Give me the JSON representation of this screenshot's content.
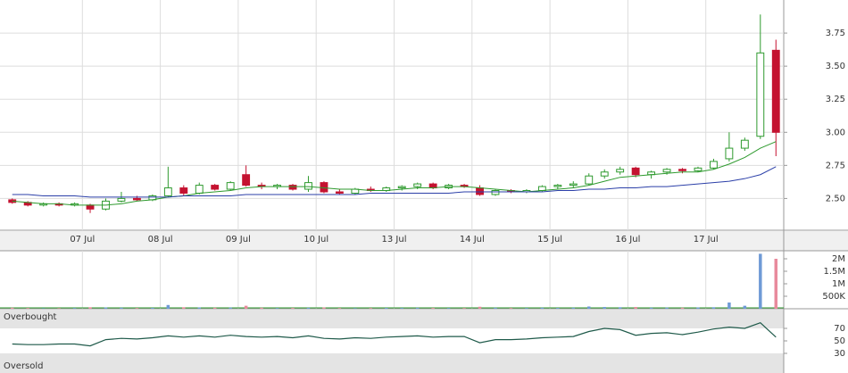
{
  "chart_data": [
    {
      "type": "candlestick",
      "xlim": [
        0,
        50
      ],
      "ylim": [
        2.26,
        4.0
      ],
      "up_color": "#2e9a2e",
      "down_color": "#c41230",
      "yticks": [
        {
          "value": 2.5,
          "label": "2.50"
        },
        {
          "value": 2.75,
          "label": "2.75"
        },
        {
          "value": 3.0,
          "label": "3.00"
        },
        {
          "value": 3.25,
          "label": "3.25"
        },
        {
          "value": 3.5,
          "label": "3.50"
        },
        {
          "value": 3.75,
          "label": "3.75"
        }
      ],
      "xticks": [
        {
          "value": 5,
          "label": "07 Jul"
        },
        {
          "value": 10,
          "label": "08 Jul"
        },
        {
          "value": 15,
          "label": "09 Jul"
        },
        {
          "value": 20,
          "label": "10 Jul"
        },
        {
          "value": 25,
          "label": "13 Jul"
        },
        {
          "value": 30,
          "label": "14 Jul"
        },
        {
          "value": 35,
          "label": "15 Jul"
        },
        {
          "value": 40,
          "label": "16 Jul"
        },
        {
          "value": 45,
          "label": "17 Jul"
        }
      ],
      "ohlc": [
        [
          2.49,
          2.5,
          2.46,
          2.47
        ],
        [
          2.47,
          2.48,
          2.44,
          2.45
        ],
        [
          2.45,
          2.47,
          2.44,
          2.46
        ],
        [
          2.46,
          2.47,
          2.44,
          2.45
        ],
        [
          2.45,
          2.47,
          2.44,
          2.46
        ],
        [
          2.45,
          2.46,
          2.39,
          2.42
        ],
        [
          2.42,
          2.5,
          2.41,
          2.48
        ],
        [
          2.48,
          2.55,
          2.47,
          2.5
        ],
        [
          2.5,
          2.52,
          2.48,
          2.49
        ],
        [
          2.49,
          2.53,
          2.48,
          2.52
        ],
        [
          2.52,
          2.74,
          2.51,
          2.58
        ],
        [
          2.58,
          2.6,
          2.52,
          2.54
        ],
        [
          2.54,
          2.62,
          2.53,
          2.6
        ],
        [
          2.6,
          2.61,
          2.56,
          2.57
        ],
        [
          2.57,
          2.63,
          2.56,
          2.62
        ],
        [
          2.68,
          2.75,
          2.59,
          2.6
        ],
        [
          2.6,
          2.62,
          2.57,
          2.59
        ],
        [
          2.59,
          2.61,
          2.57,
          2.6
        ],
        [
          2.6,
          2.61,
          2.56,
          2.57
        ],
        [
          2.57,
          2.67,
          2.55,
          2.62
        ],
        [
          2.62,
          2.63,
          2.54,
          2.55
        ],
        [
          2.55,
          2.57,
          2.53,
          2.54
        ],
        [
          2.54,
          2.58,
          2.53,
          2.57
        ],
        [
          2.57,
          2.59,
          2.55,
          2.56
        ],
        [
          2.56,
          2.59,
          2.55,
          2.58
        ],
        [
          2.58,
          2.6,
          2.56,
          2.59
        ],
        [
          2.59,
          2.62,
          2.57,
          2.61
        ],
        [
          2.61,
          2.62,
          2.57,
          2.58
        ],
        [
          2.58,
          2.61,
          2.57,
          2.6
        ],
        [
          2.6,
          2.61,
          2.58,
          2.59
        ],
        [
          2.58,
          2.6,
          2.52,
          2.53
        ],
        [
          2.53,
          2.57,
          2.52,
          2.56
        ],
        [
          2.56,
          2.57,
          2.54,
          2.55
        ],
        [
          2.55,
          2.57,
          2.54,
          2.56
        ],
        [
          2.56,
          2.6,
          2.55,
          2.59
        ],
        [
          2.59,
          2.61,
          2.57,
          2.6
        ],
        [
          2.6,
          2.63,
          2.58,
          2.61
        ],
        [
          2.61,
          2.69,
          2.6,
          2.67
        ],
        [
          2.67,
          2.72,
          2.65,
          2.7
        ],
        [
          2.7,
          2.74,
          2.68,
          2.72
        ],
        [
          2.73,
          2.74,
          2.66,
          2.68
        ],
        [
          2.68,
          2.71,
          2.65,
          2.7
        ],
        [
          2.7,
          2.73,
          2.68,
          2.72
        ],
        [
          2.72,
          2.73,
          2.69,
          2.71
        ],
        [
          2.71,
          2.74,
          2.7,
          2.73
        ],
        [
          2.73,
          2.8,
          2.72,
          2.78
        ],
        [
          2.8,
          3.0,
          2.78,
          2.88
        ],
        [
          2.88,
          2.96,
          2.86,
          2.94
        ],
        [
          2.97,
          3.89,
          2.95,
          3.6
        ],
        [
          3.62,
          3.7,
          2.82,
          3.0
        ]
      ],
      "series": [
        {
          "color": "#2e9a2e",
          "values": [
            2.48,
            2.47,
            2.46,
            2.46,
            2.45,
            2.45,
            2.45,
            2.46,
            2.48,
            2.49,
            2.51,
            2.52,
            2.54,
            2.55,
            2.56,
            2.58,
            2.59,
            2.59,
            2.59,
            2.59,
            2.58,
            2.57,
            2.57,
            2.56,
            2.56,
            2.57,
            2.58,
            2.58,
            2.59,
            2.59,
            2.58,
            2.57,
            2.56,
            2.55,
            2.56,
            2.57,
            2.58,
            2.6,
            2.63,
            2.66,
            2.67,
            2.68,
            2.69,
            2.7,
            2.7,
            2.72,
            2.76,
            2.81,
            2.88,
            2.93
          ]
        },
        {
          "color": "#2b3fa8",
          "values": [
            2.53,
            2.53,
            2.52,
            2.52,
            2.52,
            2.51,
            2.51,
            2.51,
            2.51,
            2.51,
            2.51,
            2.52,
            2.52,
            2.52,
            2.52,
            2.53,
            2.53,
            2.53,
            2.53,
            2.53,
            2.53,
            2.53,
            2.53,
            2.54,
            2.54,
            2.54,
            2.54,
            2.54,
            2.54,
            2.55,
            2.55,
            2.55,
            2.55,
            2.55,
            2.55,
            2.56,
            2.56,
            2.57,
            2.57,
            2.58,
            2.58,
            2.59,
            2.59,
            2.6,
            2.61,
            2.62,
            2.63,
            2.65,
            2.68,
            2.74
          ]
        }
      ]
    },
    {
      "type": "bar",
      "xlim": [
        0,
        50
      ],
      "ylim": [
        0,
        2250000
      ],
      "up_color": "#6f9ad6",
      "down_color": "#e88a9c",
      "yticks": [
        {
          "value": 500000,
          "label": "500K"
        },
        {
          "value": 1000000,
          "label": "1M"
        },
        {
          "value": 1500000,
          "label": "1.5M"
        },
        {
          "value": 2000000,
          "label": "2M"
        }
      ],
      "values": [
        40000,
        30000,
        20000,
        25000,
        30000,
        60000,
        50000,
        40000,
        30000,
        35000,
        150000,
        60000,
        50000,
        40000,
        45000,
        120000,
        40000,
        30000,
        35000,
        40000,
        50000,
        30000,
        25000,
        30000,
        35000,
        30000,
        40000,
        35000,
        30000,
        30000,
        80000,
        40000,
        30000,
        30000,
        40000,
        35000,
        40000,
        90000,
        70000,
        60000,
        70000,
        40000,
        45000,
        40000,
        50000,
        60000,
        250000,
        120000,
        2200000,
        2000000
      ]
    },
    {
      "type": "line",
      "xlim": [
        0,
        50
      ],
      "ylim": [
        0,
        100
      ],
      "color": "#1f5a4a",
      "overbought": "Overbought",
      "oversold": "Oversold",
      "yticks": [
        30,
        50,
        70
      ],
      "values": [
        45,
        44,
        44,
        45,
        45,
        42,
        52,
        54,
        53,
        55,
        58,
        56,
        58,
        56,
        59,
        57,
        56,
        57,
        55,
        58,
        54,
        53,
        55,
        54,
        56,
        57,
        58,
        56,
        57,
        57,
        47,
        52,
        52,
        53,
        55,
        56,
        57,
        65,
        70,
        68,
        59,
        62,
        63,
        60,
        64,
        69,
        72,
        70,
        79,
        56
      ]
    }
  ]
}
